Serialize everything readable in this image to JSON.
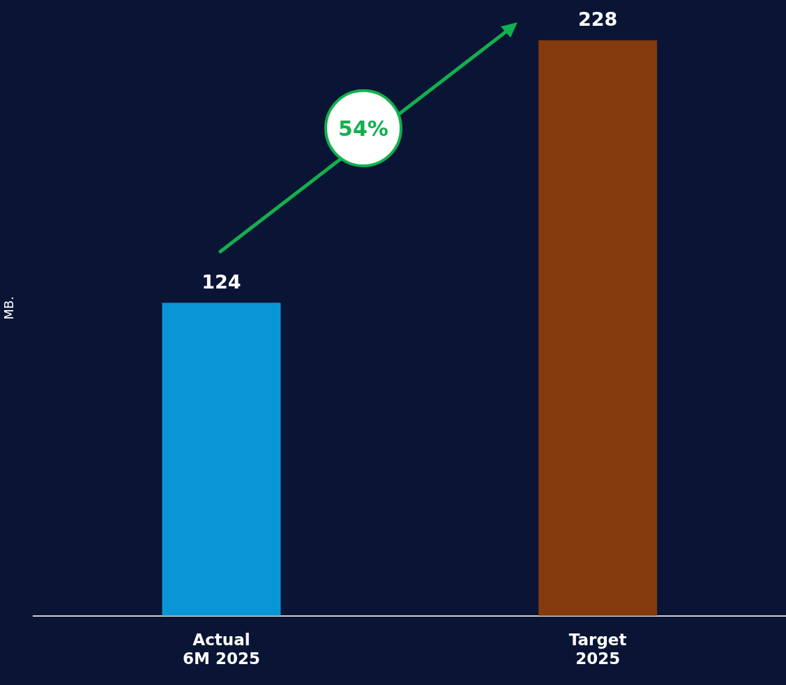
{
  "chart_data": {
    "type": "bar",
    "ylabel": "MB.",
    "categories": [
      "Actual\n6M 2025",
      "Target\n2025"
    ],
    "values": [
      124,
      228
    ],
    "colors": [
      "#0a95d6",
      "#843a0c"
    ],
    "data_labels": true,
    "grid": false,
    "legend": false,
    "annotations": [
      "54%"
    ]
  }
}
